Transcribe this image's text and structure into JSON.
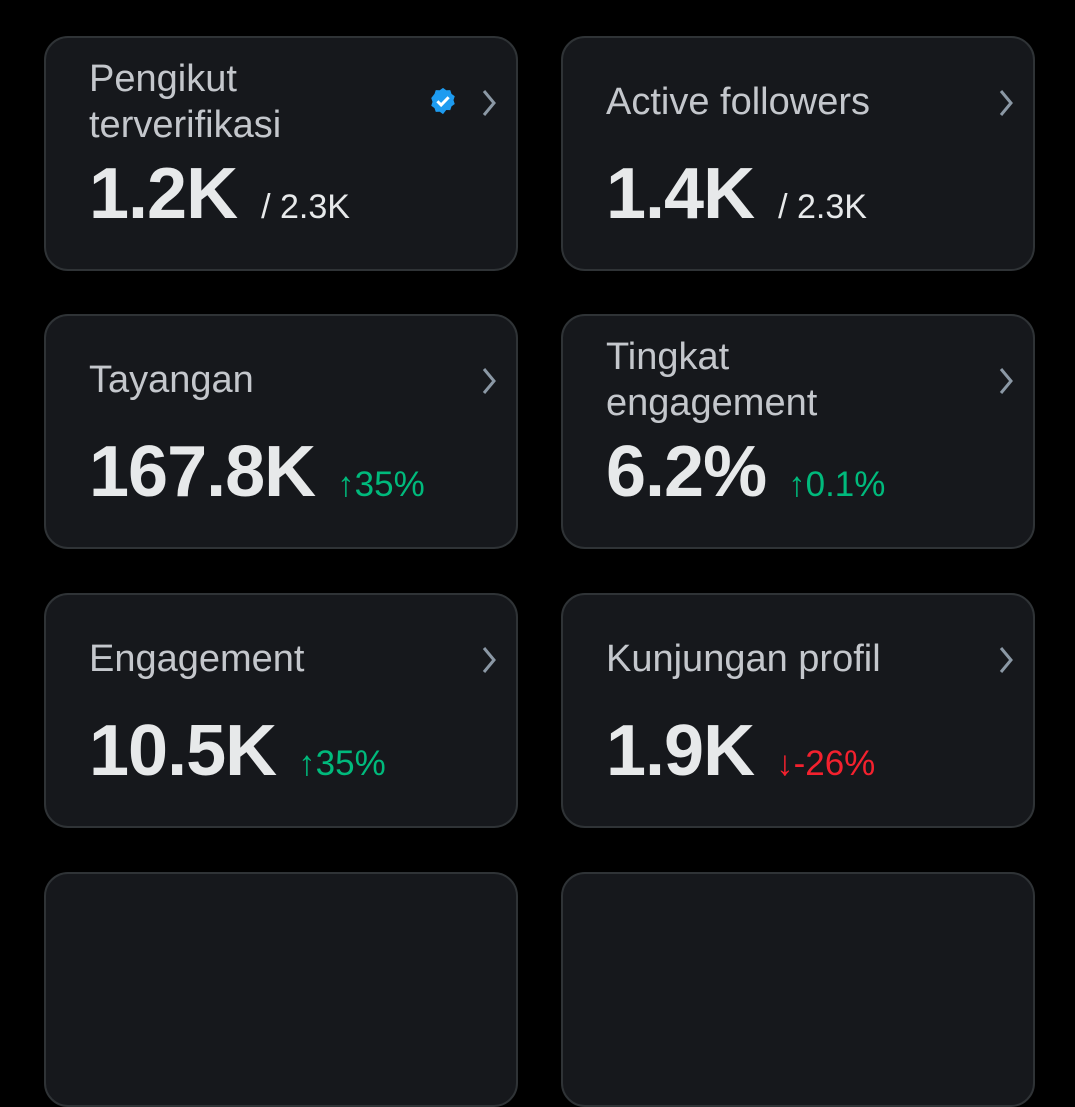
{
  "cards": [
    {
      "label": "Pengikut terverifikasi",
      "value": "1.2K",
      "total": "/ 2.3K"
    },
    {
      "label": "Active followers",
      "value": "1.4K",
      "total": "/ 2.3K"
    },
    {
      "label": "Tayangan",
      "value": "167.8K",
      "change": "↑35%",
      "change_color": "#00ba7c"
    },
    {
      "label": "Tingkat engagement",
      "value": "6.2%",
      "change": "↑0.1%",
      "change_color": "#00ba7c"
    },
    {
      "label": "Engagement",
      "value": "10.5K",
      "change": "↑35%",
      "change_color": "#00ba7c"
    },
    {
      "label": "Kunjungan profil",
      "value": "1.9K",
      "change": "↓-26%",
      "change_color": "#f4212e"
    }
  ]
}
